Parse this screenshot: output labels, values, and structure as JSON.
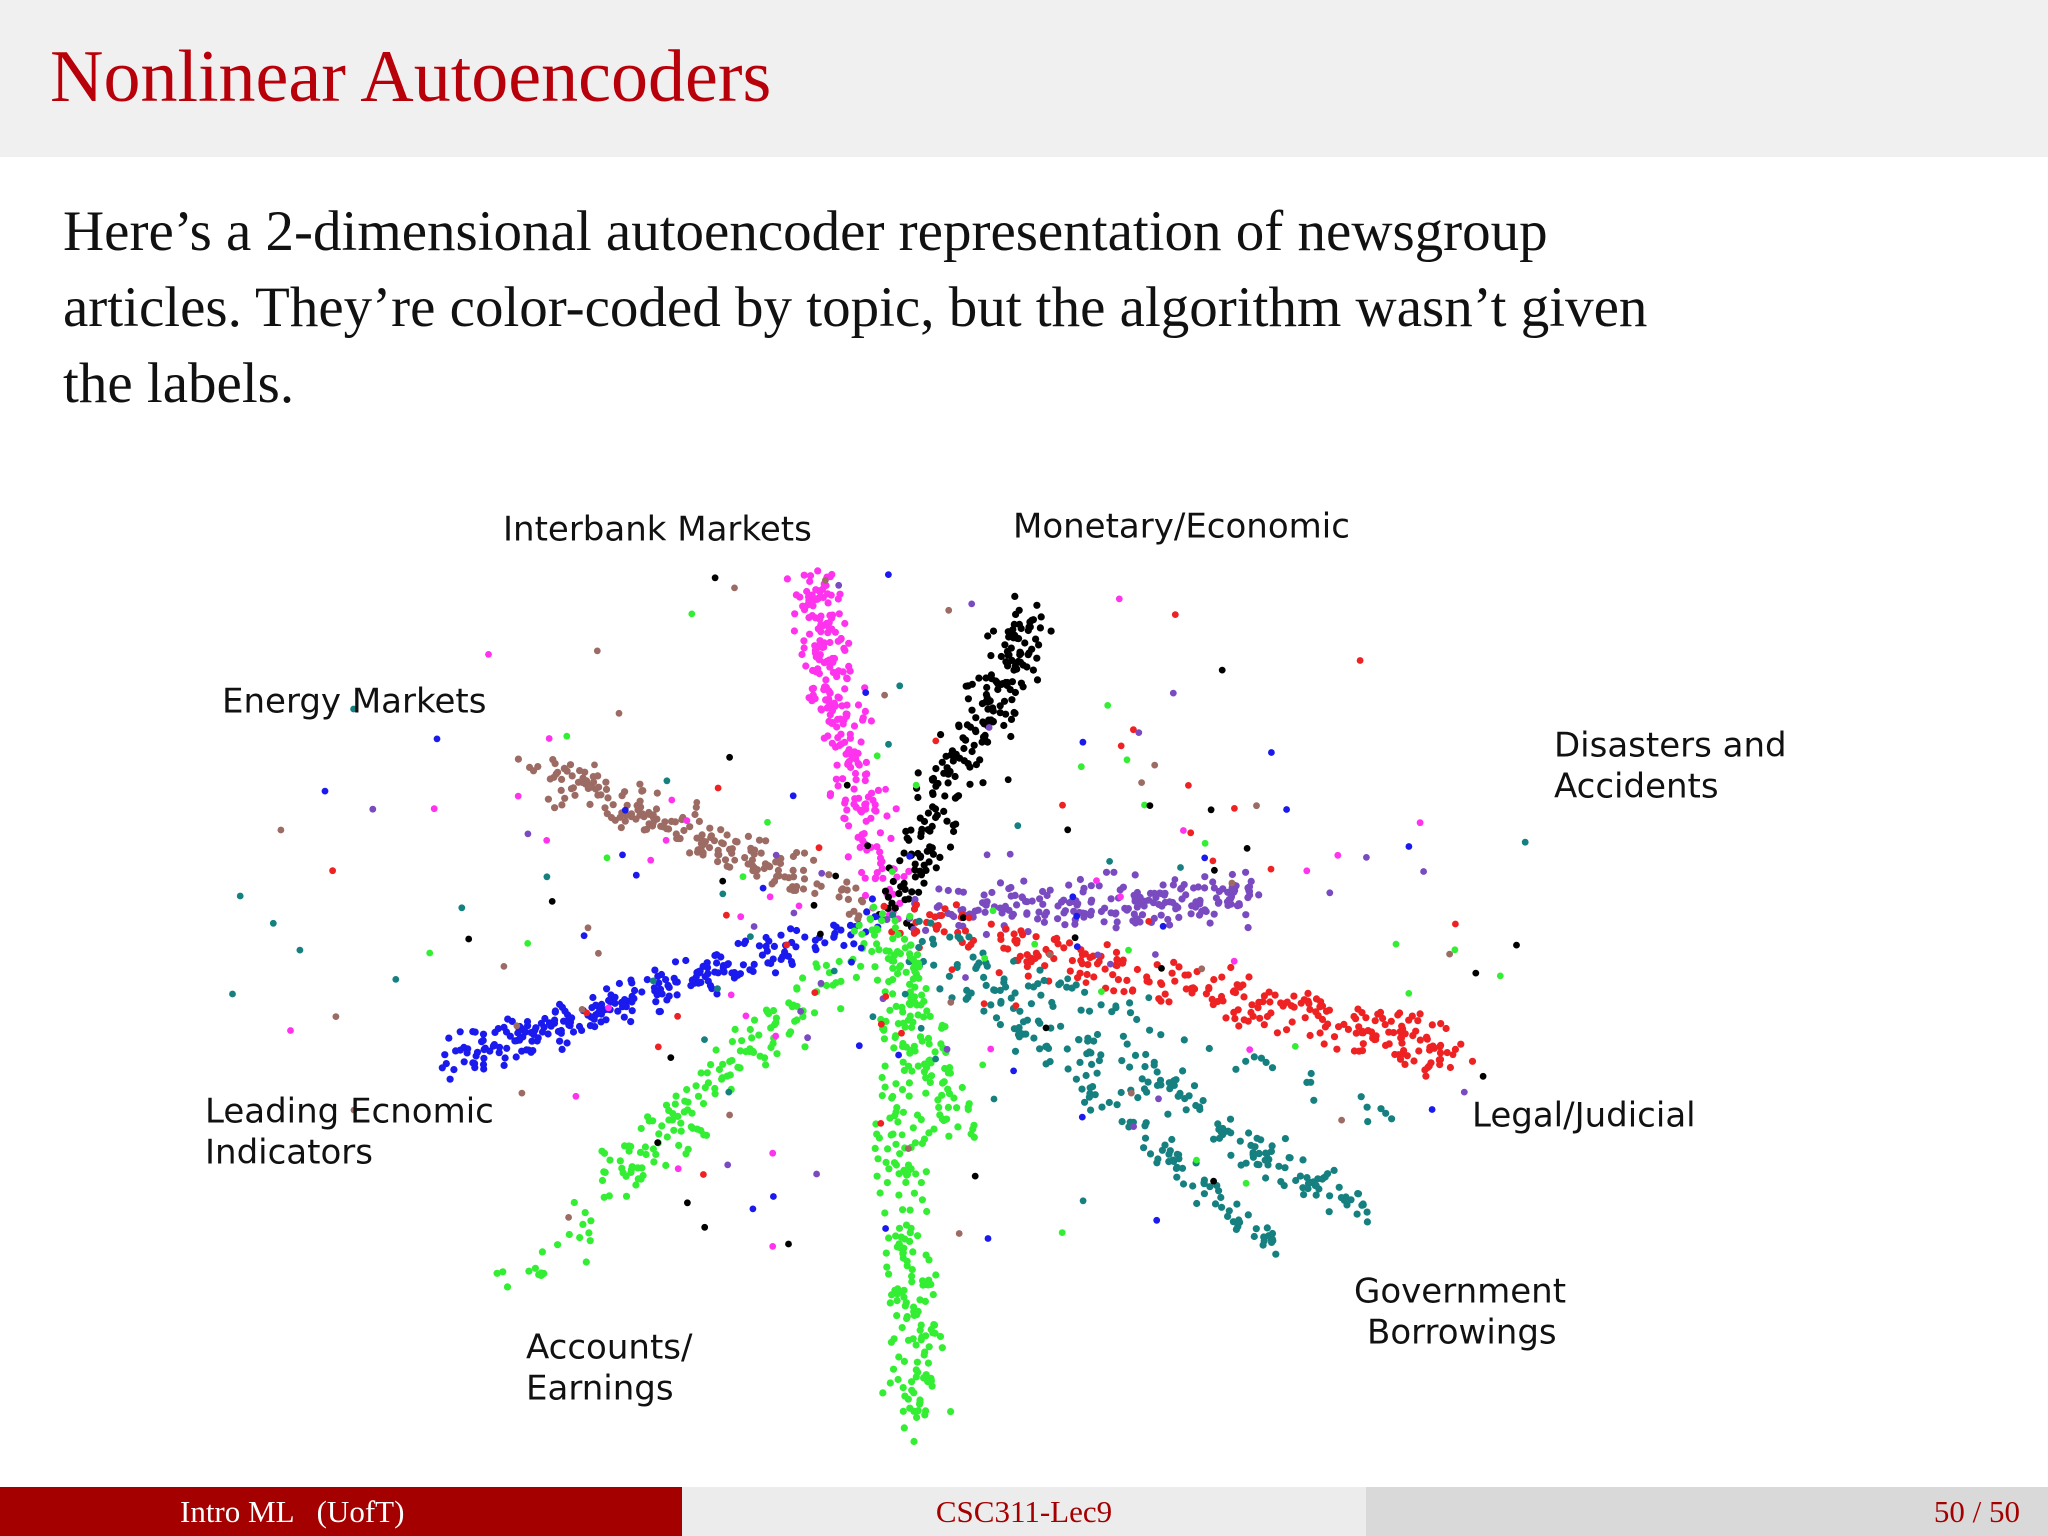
{
  "header": {
    "title": "Nonlinear Autoencoders"
  },
  "body": {
    "lines": [
      "Here’s a 2-dimensional autoencoder representation of newsgroup",
      "articles. They’re color-coded by topic, but the algorithm wasn’t given",
      "the labels."
    ]
  },
  "figure": {
    "labels": [
      {
        "lines": [
          "Interbank Markets"
        ]
      },
      {
        "lines": [
          "Monetary/Economic"
        ]
      },
      {
        "lines": [
          "Energy Markets"
        ]
      },
      {
        "lines": [
          "Disasters and",
          "Accidents"
        ]
      },
      {
        "lines": [
          "Leading Ecnomic",
          "Indicators"
        ]
      },
      {
        "lines": [
          "Legal/Judicial"
        ]
      },
      {
        "lines": [
          "Government",
          "Borrowings"
        ]
      },
      {
        "lines": [
          "Accounts/",
          "Earnings"
        ]
      }
    ]
  },
  "footer": {
    "left": "Intro ML   (UofT)",
    "center": "CSC311-Lec9",
    "right": "50 / 50"
  }
}
